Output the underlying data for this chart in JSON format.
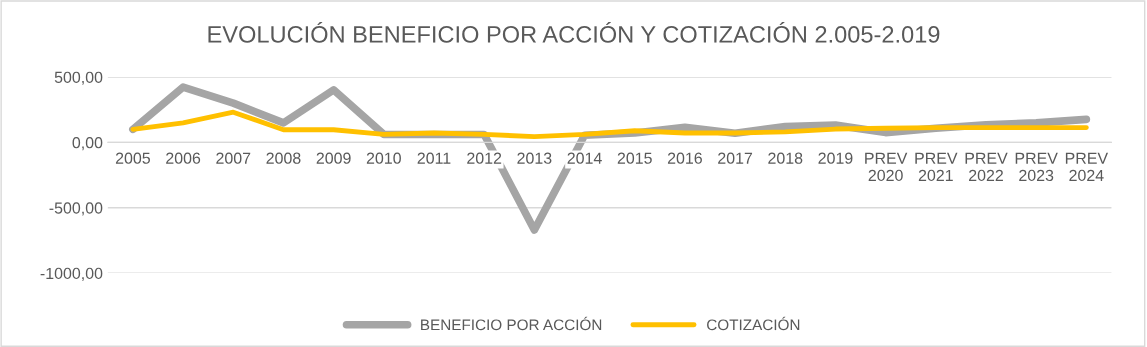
{
  "chart_data": {
    "type": "line",
    "title": "EVOLUCIÓN BENEFICIO POR ACCIÓN Y COTIZACIÓN 2.005-2.019",
    "categories": [
      "2005",
      "2006",
      "2007",
      "2008",
      "2009",
      "2010",
      "2011",
      "2012",
      "2013",
      "2014",
      "2015",
      "2016",
      "2017",
      "2018",
      "2019",
      "PREV\n2020",
      "PREV\n2021",
      "PREV\n2022",
      "PREV\n2023",
      "PREV\n2024"
    ],
    "series": [
      {
        "name": "BENEFICIO POR ACCIÓN",
        "color": "#a5a5a5",
        "values": [
          100,
          423,
          300,
          149,
          402,
          61,
          60,
          60,
          -670,
          55,
          72,
          115,
          70,
          121,
          132,
          75,
          108,
          135,
          149,
          176
        ]
      },
      {
        "name": "COTIZACIÓN",
        "color": "#ffc000",
        "values": [
          100,
          149,
          231,
          97,
          97,
          61,
          72,
          61,
          44,
          61,
          89,
          72,
          72,
          80,
          102,
          108,
          113,
          113,
          113,
          113
        ]
      }
    ],
    "ylim": [
      -1000,
      500
    ],
    "yticks": [
      {
        "value": -1000,
        "label": "-1000,00"
      },
      {
        "value": -500,
        "label": "-500,00"
      },
      {
        "value": 0,
        "label": "0,00"
      },
      {
        "value": 500,
        "label": "500,00"
      }
    ],
    "grid": "y",
    "legend": "bottom",
    "marker": "none",
    "line_style": "solid"
  }
}
